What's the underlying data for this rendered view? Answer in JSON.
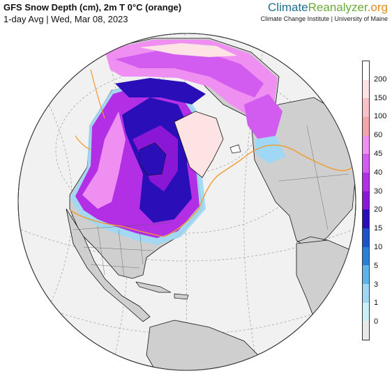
{
  "header": {
    "title": "GFS Snow Depth (cm), 2m T 0°C (orange)",
    "subtitle": "1-day Avg | Wed, Mar 08, 2023"
  },
  "brand": {
    "name_part1": "Climate",
    "name_part2": "Reanalyzer",
    "name_part3": ".org",
    "affiliation": "Climate Change Institute | University of Maine"
  },
  "legend": {
    "labels": [
      "200",
      "150",
      "100",
      "60",
      "45",
      "40",
      "30",
      "20",
      "15",
      "10",
      "5",
      "3",
      "1",
      "0"
    ],
    "colors": [
      "#ffffff",
      "#fde3e4",
      "#f6c2c8",
      "#f3a6a9",
      "#f08ff2",
      "#d25bf0",
      "#b32fe6",
      "#8b17d6",
      "#2a0fb8",
      "#1d52c9",
      "#2a7fd6",
      "#5fb2ea",
      "#9fd7f4",
      "#c9f0f8",
      "#e8e8e8"
    ]
  },
  "map": {
    "colors": {
      "ocean": "#f1f1f1",
      "land": "#cfcfcf",
      "coast": "#111111",
      "graticule": "#999999",
      "freeze_line": "#f29a2e"
    }
  }
}
